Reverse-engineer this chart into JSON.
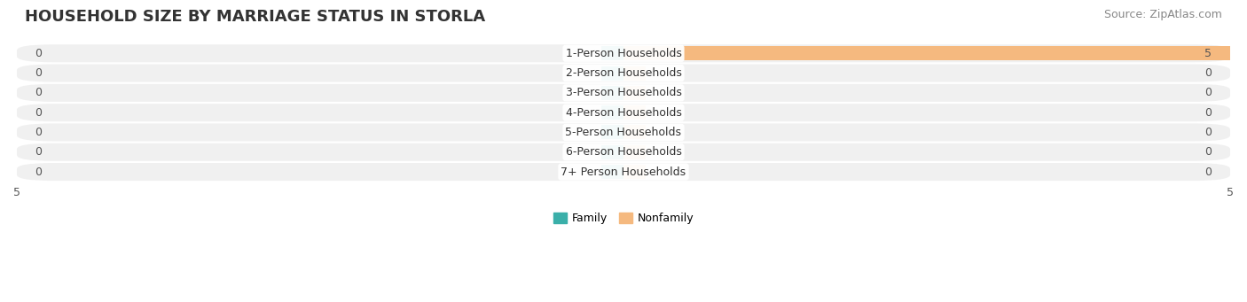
{
  "title": "HOUSEHOLD SIZE BY MARRIAGE STATUS IN STORLA",
  "source": "Source: ZipAtlas.com",
  "categories": [
    "7+ Person Households",
    "6-Person Households",
    "5-Person Households",
    "4-Person Households",
    "3-Person Households",
    "2-Person Households",
    "1-Person Households"
  ],
  "family_values": [
    0,
    0,
    0,
    0,
    0,
    0,
    0
  ],
  "nonfamily_values": [
    0,
    0,
    0,
    0,
    0,
    0,
    5
  ],
  "family_color": "#3aafa9",
  "nonfamily_color": "#f5b97f",
  "xlim": [
    -5,
    5
  ],
  "bar_row_bg": "#f0f0f0",
  "legend_family": "Family",
  "legend_nonfamily": "Nonfamily",
  "title_fontsize": 13,
  "source_fontsize": 9,
  "label_fontsize": 9,
  "category_fontsize": 9
}
